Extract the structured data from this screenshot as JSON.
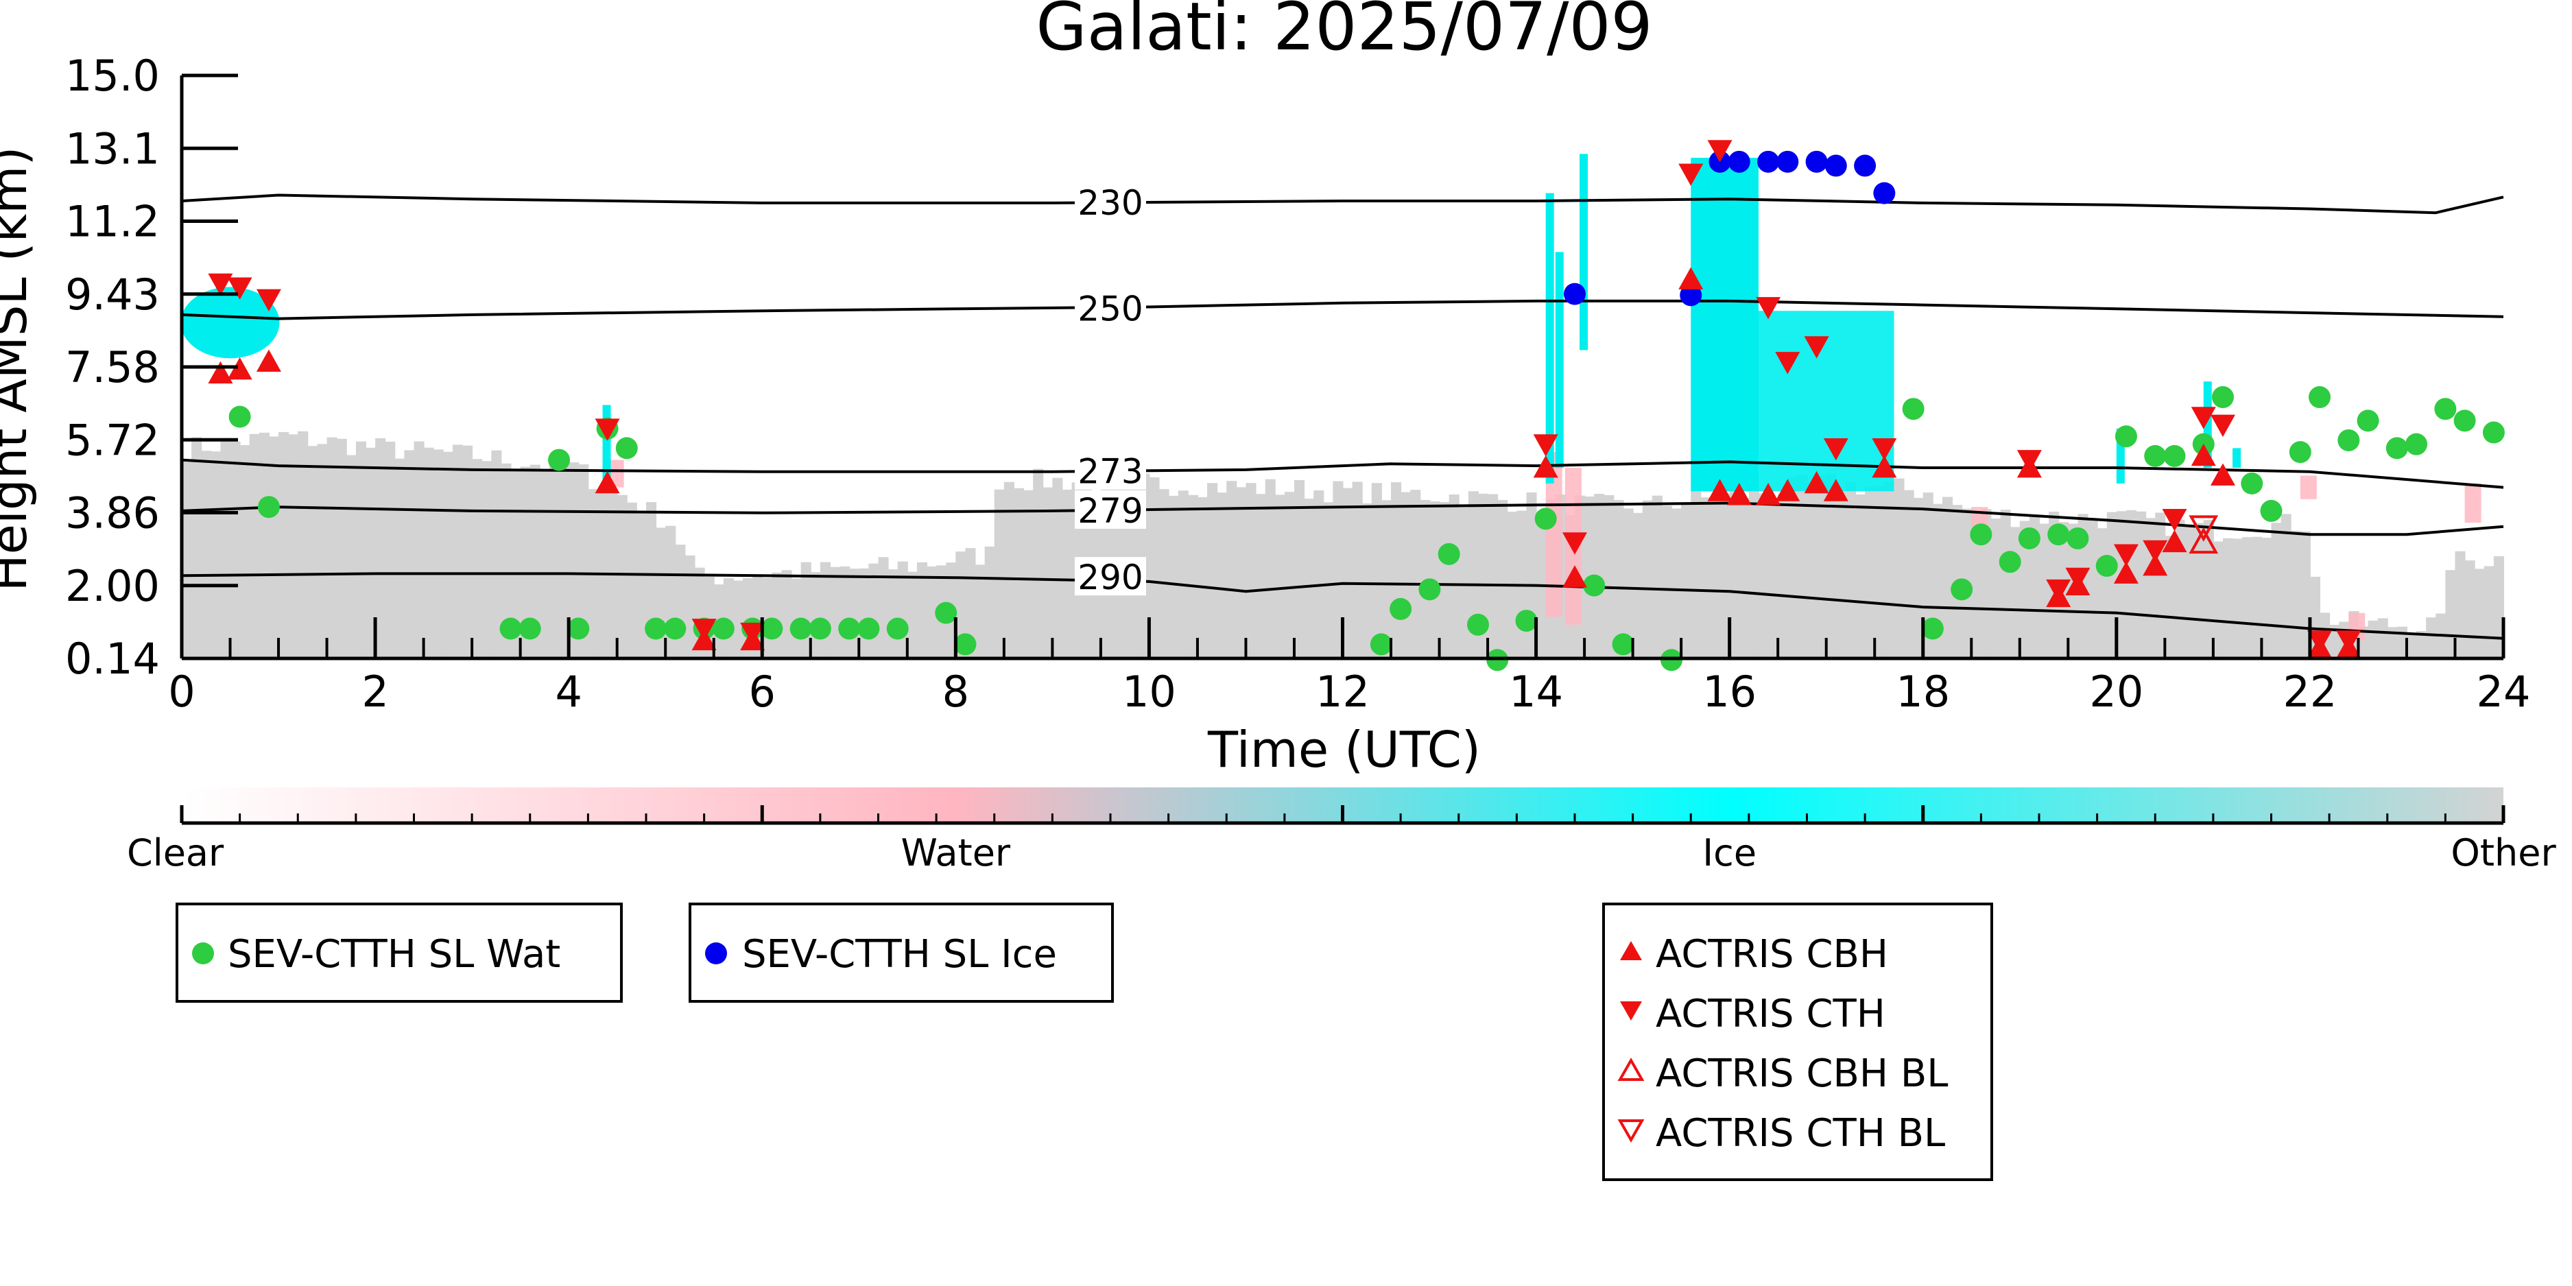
{
  "chart_data": {
    "type": "scatter",
    "title": "Galati: 2025/07/09",
    "xlabel": "Time (UTC)",
    "ylabel": "Height AMSL (km)",
    "xlim": [
      0,
      24
    ],
    "ylim": [
      0.14,
      15.0
    ],
    "x_ticks": [
      "0",
      "2",
      "4",
      "6",
      "8",
      "10",
      "12",
      "14",
      "16",
      "18",
      "20",
      "22",
      "24"
    ],
    "y_ticks": [
      "0.14",
      "2.00",
      "3.86",
      "5.72",
      "7.58",
      "9.43",
      "11.2",
      "13.1",
      "15.0"
    ],
    "colorbar": {
      "labels": [
        "Clear",
        "Water",
        "Ice",
        "Other"
      ],
      "colors": [
        "#ffffff",
        "#ffb6c1",
        "#00ffff",
        "#d3d3d3"
      ]
    },
    "colors": {
      "wat": "#2ecc40",
      "ice": "#0000ee",
      "actris": "#ee1111",
      "other": "#d3d3d3",
      "water": "#ffb6c1",
      "icecloud": "#00eeee"
    },
    "contours": [
      {
        "label": "230",
        "points": [
          [
            0,
            11.8
          ],
          [
            1,
            11.95
          ],
          [
            3,
            11.85
          ],
          [
            6,
            11.75
          ],
          [
            9,
            11.75
          ],
          [
            12,
            11.8
          ],
          [
            14,
            11.8
          ],
          [
            16,
            11.85
          ],
          [
            18,
            11.75
          ],
          [
            20,
            11.7
          ],
          [
            22,
            11.6
          ],
          [
            23.3,
            11.5
          ],
          [
            24,
            11.9
          ]
        ]
      },
      {
        "label": "250",
        "points": [
          [
            0,
            8.9
          ],
          [
            1,
            8.8
          ],
          [
            3,
            8.9
          ],
          [
            6,
            9.0
          ],
          [
            8,
            9.05
          ],
          [
            10,
            9.1
          ],
          [
            12,
            9.2
          ],
          [
            14,
            9.25
          ],
          [
            16,
            9.25
          ],
          [
            18,
            9.15
          ],
          [
            20,
            9.05
          ],
          [
            22,
            8.95
          ],
          [
            24,
            8.85
          ]
        ]
      },
      {
        "label": "273",
        "points": [
          [
            0,
            5.2
          ],
          [
            1,
            5.05
          ],
          [
            3,
            4.95
          ],
          [
            6,
            4.9
          ],
          [
            9,
            4.9
          ],
          [
            11,
            4.95
          ],
          [
            12.5,
            5.1
          ],
          [
            14,
            5.05
          ],
          [
            16,
            5.15
          ],
          [
            18,
            5.0
          ],
          [
            20,
            5.0
          ],
          [
            22,
            4.9
          ],
          [
            24,
            4.5
          ]
        ]
      },
      {
        "label": "279",
        "points": [
          [
            0,
            3.9
          ],
          [
            1,
            4.0
          ],
          [
            3,
            3.9
          ],
          [
            6,
            3.85
          ],
          [
            9,
            3.9
          ],
          [
            12,
            4.0
          ],
          [
            14,
            4.05
          ],
          [
            16,
            4.1
          ],
          [
            18,
            3.95
          ],
          [
            20,
            3.65
          ],
          [
            22,
            3.3
          ],
          [
            23,
            3.3
          ],
          [
            24,
            3.5
          ]
        ]
      },
      {
        "label": "290",
        "points": [
          [
            0,
            2.25
          ],
          [
            2,
            2.3
          ],
          [
            4,
            2.3
          ],
          [
            6,
            2.25
          ],
          [
            8,
            2.2
          ],
          [
            10,
            2.1
          ],
          [
            11,
            1.85
          ],
          [
            12,
            2.05
          ],
          [
            14,
            2.0
          ],
          [
            16,
            1.85
          ],
          [
            18,
            1.45
          ],
          [
            20,
            1.3
          ],
          [
            22,
            0.9
          ],
          [
            24,
            0.65
          ]
        ]
      }
    ],
    "series": [
      {
        "name": "SEV-CTTH SL Wat",
        "marker": "circle",
        "points": [
          [
            0.6,
            6.3
          ],
          [
            0.9,
            4.0
          ],
          [
            3.4,
            0.9
          ],
          [
            3.6,
            0.9
          ],
          [
            3.9,
            5.2
          ],
          [
            4.1,
            0.9
          ],
          [
            4.4,
            6.0
          ],
          [
            4.6,
            5.5
          ],
          [
            4.9,
            0.9
          ],
          [
            5.1,
            0.9
          ],
          [
            5.4,
            0.9
          ],
          [
            5.6,
            0.9
          ],
          [
            5.9,
            0.9
          ],
          [
            6.1,
            0.9
          ],
          [
            6.4,
            0.9
          ],
          [
            6.6,
            0.9
          ],
          [
            6.9,
            0.9
          ],
          [
            7.1,
            0.9
          ],
          [
            7.4,
            0.9
          ],
          [
            7.9,
            1.3
          ],
          [
            8.1,
            0.5
          ],
          [
            12.4,
            0.5
          ],
          [
            12.6,
            1.4
          ],
          [
            12.9,
            1.9
          ],
          [
            13.1,
            2.8
          ],
          [
            13.4,
            1.0
          ],
          [
            13.6,
            0.1
          ],
          [
            13.9,
            1.1
          ],
          [
            14.1,
            3.7
          ],
          [
            14.6,
            2.0
          ],
          [
            14.9,
            0.5
          ],
          [
            15.4,
            0.1
          ],
          [
            17.9,
            6.5
          ],
          [
            18.1,
            0.9
          ],
          [
            18.4,
            1.9
          ],
          [
            18.6,
            3.3
          ],
          [
            18.9,
            2.6
          ],
          [
            19.1,
            3.2
          ],
          [
            19.4,
            3.3
          ],
          [
            19.6,
            3.2
          ],
          [
            19.9,
            2.5
          ],
          [
            20.1,
            5.8
          ],
          [
            20.4,
            5.3
          ],
          [
            20.6,
            5.3
          ],
          [
            20.9,
            5.6
          ],
          [
            21.1,
            6.8
          ],
          [
            21.4,
            4.6
          ],
          [
            21.6,
            3.9
          ],
          [
            21.9,
            5.4
          ],
          [
            22.1,
            6.8
          ],
          [
            22.4,
            5.7
          ],
          [
            22.6,
            6.2
          ],
          [
            22.9,
            5.5
          ],
          [
            23.1,
            5.6
          ],
          [
            23.4,
            6.5
          ],
          [
            23.6,
            6.2
          ],
          [
            23.9,
            5.9
          ]
        ]
      },
      {
        "name": "SEV-CTTH SL Ice",
        "marker": "circle",
        "points": [
          [
            14.4,
            9.43
          ],
          [
            15.6,
            9.4
          ],
          [
            15.9,
            12.8
          ],
          [
            16.1,
            12.8
          ],
          [
            16.4,
            12.8
          ],
          [
            16.6,
            12.8
          ],
          [
            16.9,
            12.8
          ],
          [
            17.1,
            12.7
          ],
          [
            17.4,
            12.7
          ],
          [
            17.6,
            12.0
          ]
        ]
      },
      {
        "name": "ACTRIS CBH",
        "marker": "triangle-up",
        "points": [
          [
            0.4,
            7.4
          ],
          [
            0.6,
            7.5
          ],
          [
            0.9,
            7.7
          ],
          [
            4.4,
            4.6
          ],
          [
            5.4,
            0.6
          ],
          [
            5.9,
            0.6
          ],
          [
            14.1,
            5.0
          ],
          [
            14.4,
            2.2
          ],
          [
            15.6,
            9.8
          ],
          [
            15.9,
            4.4
          ],
          [
            16.1,
            4.3
          ],
          [
            16.4,
            4.3
          ],
          [
            16.6,
            4.4
          ],
          [
            16.9,
            4.6
          ],
          [
            17.1,
            4.4
          ],
          [
            17.6,
            5.0
          ],
          [
            19.1,
            5.0
          ],
          [
            19.4,
            1.7
          ],
          [
            19.6,
            2.0
          ],
          [
            20.1,
            2.3
          ],
          [
            20.4,
            2.5
          ],
          [
            20.6,
            3.1
          ],
          [
            20.9,
            5.3
          ],
          [
            21.1,
            4.8
          ],
          [
            22.1,
            0.4
          ],
          [
            22.4,
            0.4
          ]
        ]
      },
      {
        "name": "ACTRIS CTH",
        "marker": "triangle-down",
        "points": [
          [
            0.4,
            9.7
          ],
          [
            0.6,
            9.6
          ],
          [
            0.9,
            9.3
          ],
          [
            4.4,
            6.0
          ],
          [
            5.4,
            0.9
          ],
          [
            5.9,
            0.8
          ],
          [
            14.1,
            5.6
          ],
          [
            14.4,
            3.1
          ],
          [
            15.6,
            12.5
          ],
          [
            15.9,
            13.1
          ],
          [
            16.4,
            9.1
          ],
          [
            16.6,
            7.7
          ],
          [
            16.9,
            8.1
          ],
          [
            17.1,
            5.5
          ],
          [
            17.6,
            5.5
          ],
          [
            19.1,
            5.2
          ],
          [
            19.4,
            1.9
          ],
          [
            19.6,
            2.2
          ],
          [
            20.1,
            2.8
          ],
          [
            20.4,
            2.9
          ],
          [
            20.6,
            3.7
          ],
          [
            20.9,
            6.3
          ],
          [
            21.1,
            6.1
          ],
          [
            22.1,
            0.6
          ],
          [
            22.4,
            0.6
          ]
        ]
      },
      {
        "name": "ACTRIS CBH BL",
        "marker": "triangle-up-open",
        "points": [
          [
            20.9,
            3.1
          ]
        ]
      },
      {
        "name": "ACTRIS CTH BL",
        "marker": "triangle-down-open",
        "points": [
          [
            20.9,
            3.5
          ]
        ]
      }
    ]
  }
}
